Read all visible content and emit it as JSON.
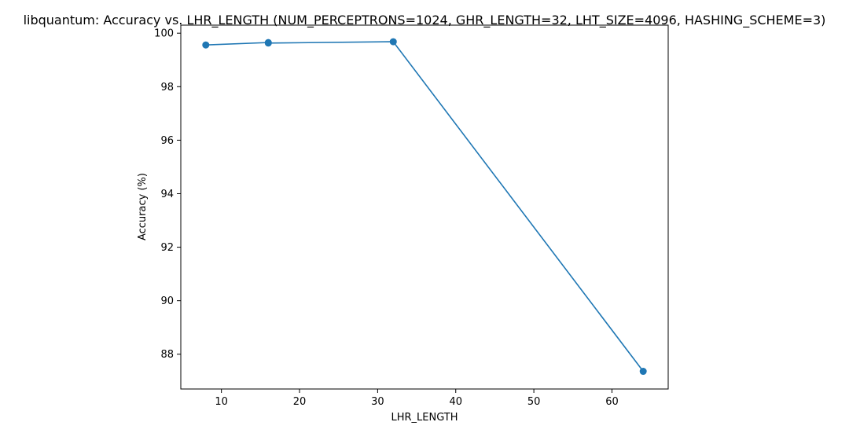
{
  "chart_data": {
    "type": "line",
    "title": "libquantum: Accuracy vs. LHR_LENGTH (NUM_PERCEPTRONS=1024, GHR_LENGTH=32, LHT_SIZE=4096, HASHING_SCHEME=3)",
    "xlabel": "LHR_LENGTH",
    "ylabel": "Accuracy (%)",
    "xlim": [
      4.8,
      67.2
    ],
    "ylim": [
      86.7,
      100.3
    ],
    "xticks": [
      10,
      20,
      30,
      40,
      50,
      60
    ],
    "yticks": [
      88,
      90,
      92,
      94,
      96,
      98,
      100
    ],
    "grid": false,
    "legend": "none",
    "series": [
      {
        "color": "#1f77b4",
        "marker": "circle",
        "points": [
          {
            "x": 8,
            "y": 99.56
          },
          {
            "x": 16,
            "y": 99.65
          },
          {
            "x": 16,
            "y": 99.63
          },
          {
            "x": 32,
            "y": 99.68
          },
          {
            "x": 64,
            "y": 87.36
          }
        ]
      }
    ]
  }
}
